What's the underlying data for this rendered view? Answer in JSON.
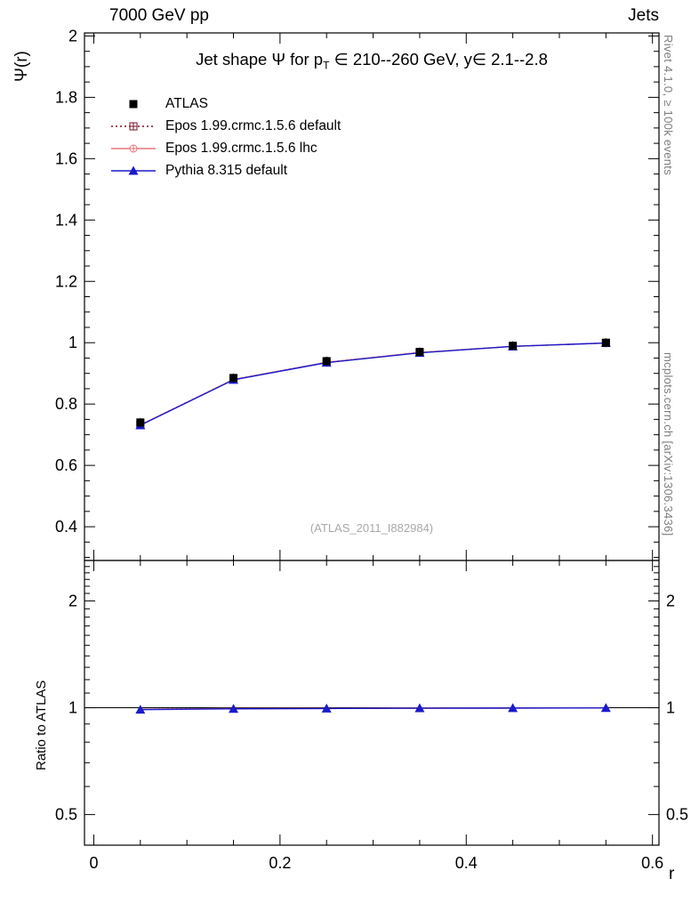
{
  "header": {
    "left": "7000 GeV pp",
    "right": "Jets"
  },
  "side_notes": {
    "top_right": "Rivet 4.1.0, ≥ 100k events",
    "bottom_right": "mcplots.cern.ch [arXiv:1306.3436]"
  },
  "watermark": "(ATLAS_2011_I882984)",
  "main_panel": {
    "title_prefix": "Jet shape Ψ for p",
    "title_sub": "T",
    "title_suffix": " ∈ 210--260 GeV, y∈ 2.1--2.8",
    "ylabel": "Ψ(r)"
  },
  "ratio_panel": {
    "ylabel": "Ratio to ATLAS"
  },
  "xlabel": "r",
  "chart_data": {
    "type": "line",
    "title": "Jet shape Psi for pT in 210--260 GeV, y in 2.1--2.8",
    "xlabel": "r",
    "ylabel": "Psi(r)",
    "x": [
      0.05,
      0.15,
      0.25,
      0.35,
      0.45,
      0.55
    ],
    "xlim": [
      -0.01,
      0.607
    ],
    "ylim_main": [
      0.29,
      2.01
    ],
    "ylim_ratio": [
      0.41,
      2.6
    ],
    "ratio_scale": "log",
    "grid": false,
    "legend_position": "top-left",
    "x_major_ticks": [
      0,
      0.2,
      0.4,
      0.6
    ],
    "x_tick_labels": [
      "0",
      "0.2",
      "0.4",
      "0.6"
    ],
    "x_minor_step": 0.05,
    "y_major_ticks_main": [
      0.4,
      0.6,
      0.8,
      1.0,
      1.2,
      1.4,
      1.6,
      1.8,
      2.0
    ],
    "y_tick_labels_main": [
      "0.4",
      "0.6",
      "0.8",
      "1",
      "1.2",
      "1.4",
      "1.6",
      "1.8",
      "2"
    ],
    "y_minor_step_main": 0.05,
    "y_major_ticks_ratio": [
      0.5,
      1,
      2
    ],
    "y_tick_labels_ratio": [
      "0.5",
      "1",
      "2"
    ],
    "y_minor_ticks_ratio": [
      0.6,
      0.7,
      0.8,
      0.9,
      1.1,
      1.2,
      1.3,
      1.4,
      1.5,
      1.6,
      1.7,
      1.8,
      1.9,
      2.1,
      2.2,
      2.3,
      2.4,
      2.5
    ],
    "series": [
      {
        "name": "atlas",
        "label": "ATLAS",
        "color": "#000000",
        "marker": "square",
        "line": "none",
        "values": [
          0.74,
          0.885,
          0.94,
          0.97,
          0.99,
          1.0
        ]
      },
      {
        "name": "epos-default",
        "label": "Epos 1.99.crmc.1.5.6 default",
        "color": "#7a1024",
        "marker": "cross-square",
        "line": "dotted",
        "values": [
          0.732,
          0.88,
          0.936,
          0.968,
          0.988,
          0.999
        ]
      },
      {
        "name": "epos-lhc",
        "label": "Epos 1.99.crmc.1.5.6 lhc",
        "color": "#e8767c",
        "marker": "cross-circle",
        "line": "solid",
        "values": [
          0.732,
          0.88,
          0.936,
          0.968,
          0.988,
          0.999
        ]
      },
      {
        "name": "pythia",
        "label": "Pythia 8.315 default",
        "color": "#1a1acc",
        "marker": "triangle",
        "line": "solid",
        "values": [
          0.731,
          0.879,
          0.935,
          0.967,
          0.988,
          0.999
        ]
      }
    ],
    "ratio_series": [
      {
        "name": "epos-default",
        "values": [
          0.99,
          0.995,
          0.996,
          0.998,
          0.998,
          0.999
        ]
      },
      {
        "name": "epos-lhc",
        "values": [
          0.99,
          0.995,
          0.996,
          0.998,
          0.998,
          0.999
        ]
      },
      {
        "name": "pythia",
        "values": [
          0.988,
          0.993,
          0.995,
          0.997,
          0.998,
          0.999
        ]
      }
    ]
  }
}
